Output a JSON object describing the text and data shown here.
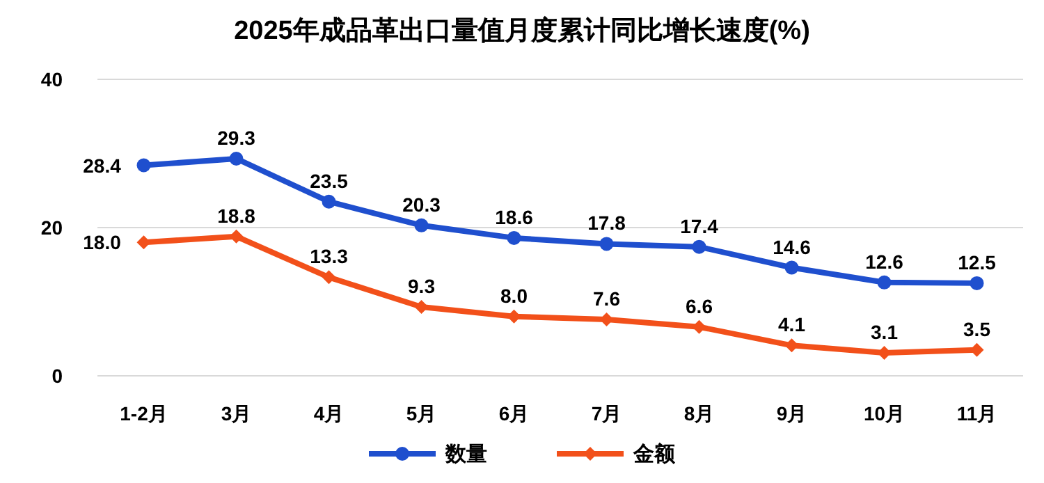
{
  "chart_data": {
    "type": "line",
    "title": "2025年成品革出口量值月度累计同比增长速度(%)",
    "categories": [
      "1-2月",
      "3月",
      "4月",
      "5月",
      "6月",
      "7月",
      "8月",
      "9月",
      "10月",
      "11月"
    ],
    "series": [
      {
        "name": "数量",
        "color": "#1f4fce",
        "marker": "circle",
        "values": [
          28.4,
          29.3,
          23.5,
          20.3,
          18.6,
          17.8,
          17.4,
          14.6,
          12.6,
          12.5
        ],
        "value_labels": [
          "28.4",
          "29.3",
          "23.5",
          "20.3",
          "18.6",
          "17.8",
          "17.4",
          "14.6",
          "12.6",
          "12.5"
        ]
      },
      {
        "name": "金额",
        "color": "#f2501a",
        "marker": "diamond",
        "values": [
          18.0,
          18.8,
          13.3,
          9.3,
          8.0,
          7.6,
          6.6,
          4.1,
          3.1,
          3.5
        ],
        "value_labels": [
          "18.0",
          "18.8",
          "13.3",
          "9.3",
          "8.0",
          "7.6",
          "6.6",
          "4.1",
          "3.1",
          "3.5"
        ]
      }
    ],
    "ylim": [
      0,
      40
    ],
    "yticks": [
      0,
      20,
      40
    ],
    "grid": "y",
    "legend": "bottom",
    "line_style": "solid"
  }
}
